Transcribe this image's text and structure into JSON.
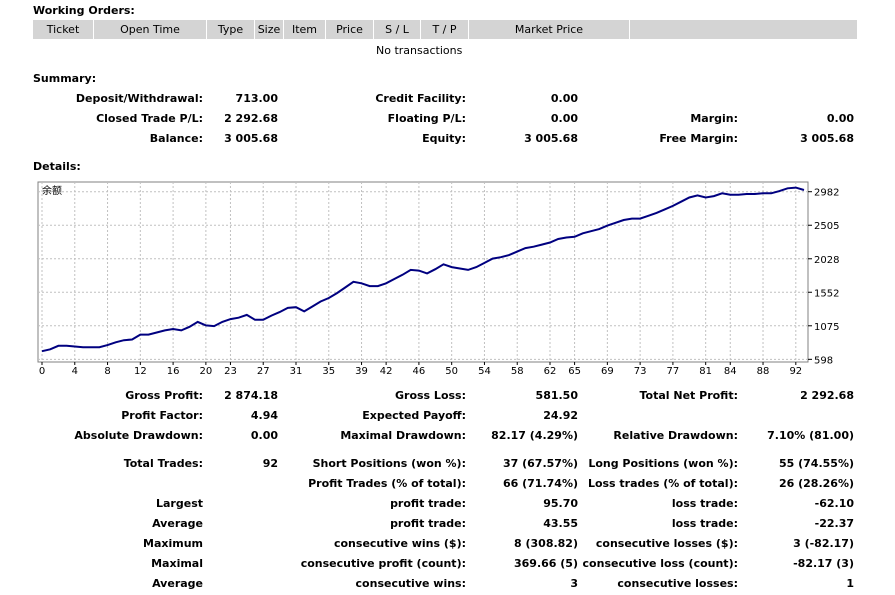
{
  "working_orders": {
    "title": "Working Orders:",
    "columns": [
      "Ticket",
      "Open Time",
      "Type",
      "Size",
      "Item",
      "Price",
      "S / L",
      "T / P",
      "Market Price"
    ],
    "empty_text": "No transactions"
  },
  "summary": {
    "title": "Summary:",
    "deposit_label": "Deposit/Withdrawal:",
    "deposit_value": "713.00",
    "credit_label": "Credit Facility:",
    "credit_value": "0.00",
    "closed_label": "Closed Trade P/L:",
    "closed_value": "2 292.68",
    "floating_label": "Floating P/L:",
    "floating_value": "0.00",
    "margin_label": "Margin:",
    "margin_value": "0.00",
    "balance_label": "Balance:",
    "balance_value": "3 005.68",
    "equity_label": "Equity:",
    "equity_value": "3 005.68",
    "free_margin_label": "Free Margin:",
    "free_margin_value": "3 005.68"
  },
  "details": {
    "title": "Details:"
  },
  "chart_data": {
    "type": "line",
    "legend": "余额",
    "x_ticks": [
      0,
      4,
      8,
      12,
      16,
      20,
      23,
      27,
      31,
      35,
      39,
      42,
      46,
      50,
      54,
      58,
      62,
      65,
      69,
      73,
      77,
      81,
      84,
      88,
      92
    ],
    "y_ticks": [
      598,
      1075,
      1552,
      2028,
      2505,
      2982
    ],
    "xlim": [
      0,
      93
    ],
    "ylim": [
      560,
      3120
    ],
    "grid": true,
    "series": [
      {
        "x": [
          0,
          1,
          2,
          3,
          4,
          5,
          6,
          7,
          8,
          9,
          10,
          11,
          12,
          13,
          14,
          15,
          16,
          17,
          18,
          19,
          20,
          21,
          22,
          23,
          24,
          25,
          26,
          27,
          28,
          29,
          30,
          31,
          32,
          33,
          34,
          35,
          36,
          37,
          38,
          39,
          40,
          41,
          42,
          43,
          44,
          45,
          46,
          47,
          48,
          49,
          50,
          51,
          52,
          53,
          54,
          55,
          56,
          57,
          58,
          59,
          60,
          61,
          62,
          63,
          64,
          65,
          66,
          67,
          68,
          69,
          70,
          71,
          72,
          73,
          74,
          75,
          76,
          77,
          78,
          79,
          80,
          81,
          82,
          83,
          84,
          85,
          86,
          87,
          88,
          89,
          90,
          91,
          92,
          93
        ],
        "y": [
          713,
          740,
          790,
          790,
          780,
          770,
          770,
          770,
          800,
          840,
          870,
          880,
          950,
          950,
          980,
          1010,
          1030,
          1010,
          1060,
          1130,
          1080,
          1070,
          1130,
          1170,
          1190,
          1230,
          1160,
          1160,
          1220,
          1270,
          1330,
          1340,
          1280,
          1350,
          1420,
          1470,
          1540,
          1620,
          1700,
          1680,
          1640,
          1640,
          1680,
          1740,
          1800,
          1870,
          1860,
          1820,
          1880,
          1950,
          1910,
          1890,
          1870,
          1910,
          1970,
          2030,
          2050,
          2080,
          2130,
          2180,
          2200,
          2230,
          2260,
          2310,
          2330,
          2340,
          2390,
          2420,
          2450,
          2500,
          2540,
          2580,
          2600,
          2600,
          2640,
          2680,
          2730,
          2780,
          2840,
          2900,
          2930,
          2900,
          2920,
          2960,
          2940,
          2940,
          2950,
          2950,
          2960,
          2960,
          2990,
          3030,
          3040,
          3006
        ]
      }
    ]
  },
  "stats": {
    "gross_profit_label": "Gross Profit:",
    "gross_profit_value": "2 874.18",
    "gross_loss_label": "Gross Loss:",
    "gross_loss_value": "581.50",
    "total_net_label": "Total Net Profit:",
    "total_net_value": "2 292.68",
    "profit_factor_label": "Profit Factor:",
    "profit_factor_value": "4.94",
    "expected_payoff_label": "Expected Payoff:",
    "expected_payoff_value": "24.92",
    "abs_dd_label": "Absolute Drawdown:",
    "abs_dd_value": "0.00",
    "max_dd_label": "Maximal Drawdown:",
    "max_dd_value": "82.17 (4.29%)",
    "rel_dd_label": "Relative Drawdown:",
    "rel_dd_value": "7.10% (81.00)",
    "total_trades_label": "Total Trades:",
    "total_trades_value": "92",
    "short_label": "Short Positions (won %):",
    "short_value": "37 (67.57%)",
    "long_label": "Long Positions (won %):",
    "long_value": "55 (74.55%)",
    "profit_trades_label": "Profit Trades (% of total):",
    "profit_trades_value": "66 (71.74%)",
    "loss_trades_label": "Loss trades (% of total):",
    "loss_trades_value": "26 (28.26%)",
    "largest_label": "Largest",
    "largest_profit_label": "profit trade:",
    "largest_profit_value": "95.70",
    "largest_loss_label": "loss trade:",
    "largest_loss_value": "-62.10",
    "average_label": "Average",
    "average_profit_label": "profit trade:",
    "average_profit_value": "43.55",
    "average_loss_label": "loss trade:",
    "average_loss_value": "-22.37",
    "maximum_label": "Maximum",
    "max_wins_label": "consecutive wins ($):",
    "max_wins_value": "8 (308.82)",
    "max_losses_label": "consecutive losses ($):",
    "max_losses_value": "3 (-82.17)",
    "maximal_label": "Maximal",
    "maximal_profit_label": "consecutive profit (count):",
    "maximal_profit_value": "369.66 (5)",
    "maximal_loss_label": "consecutive loss (count):",
    "maximal_loss_value": "-82.17 (3)",
    "avg2_label": "Average",
    "avg_wins_label": "consecutive wins:",
    "avg_wins_value": "3",
    "avg_losses_label": "consecutive losses:",
    "avg_losses_value": "1"
  },
  "colors": {
    "line": "#000080",
    "grid": "#c0c0c0",
    "header_bg": "#d4d4d4"
  }
}
